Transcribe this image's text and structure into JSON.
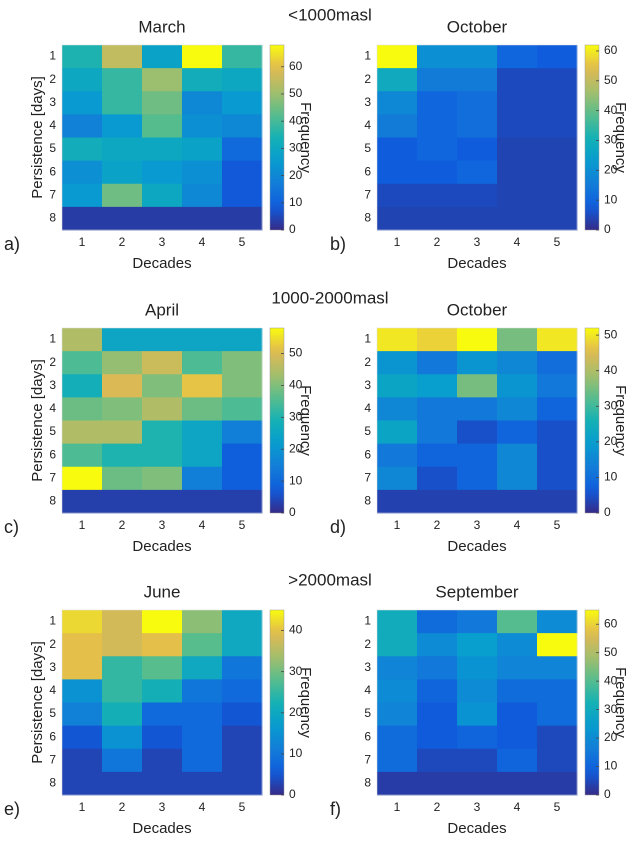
{
  "chart_data": [
    {
      "type": "heatmap",
      "title": "March",
      "annotation": "<1000masl",
      "panel_label": "a)",
      "xlabel": "Decades",
      "ylabel": "Persistence [days]",
      "colorbar_label": "Frequency",
      "x": [
        1,
        2,
        3,
        4,
        5
      ],
      "y": [
        1,
        2,
        3,
        4,
        5,
        6,
        7,
        8
      ],
      "values": [
        [
          35,
          55,
          28,
          68,
          38
        ],
        [
          30,
          38,
          50,
          32,
          30
        ],
        [
          25,
          38,
          45,
          20,
          25
        ],
        [
          18,
          25,
          42,
          22,
          20
        ],
        [
          32,
          30,
          30,
          28,
          12
        ],
        [
          22,
          28,
          25,
          22,
          8
        ],
        [
          25,
          45,
          30,
          20,
          8
        ],
        [
          3,
          3,
          3,
          3,
          3
        ]
      ],
      "clim": [
        0,
        68
      ],
      "cticks": [
        0,
        10,
        20,
        30,
        40,
        50,
        60
      ]
    },
    {
      "type": "heatmap",
      "title": "October",
      "panel_label": "b)",
      "xlabel": "Decades",
      "colorbar_label": "Frequency",
      "x": [
        1,
        2,
        3,
        4,
        5
      ],
      "y": [
        1,
        2,
        3,
        4,
        5,
        6,
        7,
        8
      ],
      "values": [
        [
          62,
          20,
          20,
          10,
          8
        ],
        [
          28,
          15,
          15,
          5,
          5
        ],
        [
          18,
          10,
          12,
          5,
          5
        ],
        [
          15,
          10,
          12,
          5,
          5
        ],
        [
          8,
          10,
          8,
          4,
          4
        ],
        [
          8,
          8,
          10,
          4,
          4
        ],
        [
          5,
          5,
          5,
          4,
          4
        ],
        [
          4,
          4,
          4,
          4,
          4
        ]
      ],
      "clim": [
        0,
        62
      ],
      "cticks": [
        0,
        10,
        20,
        30,
        40,
        50,
        60
      ]
    },
    {
      "type": "heatmap",
      "title": "April",
      "annotation": "1000-2000masl",
      "panel_label": "c)",
      "xlabel": "Decades",
      "ylabel": "Persistence [days]",
      "colorbar_label": "Frequency",
      "x": [
        1,
        2,
        3,
        4,
        5
      ],
      "y": [
        1,
        2,
        3,
        4,
        5,
        6,
        7,
        8
      ],
      "values": [
        [
          45,
          25,
          25,
          25,
          25
        ],
        [
          35,
          42,
          48,
          35,
          40
        ],
        [
          28,
          50,
          40,
          52,
          40
        ],
        [
          38,
          40,
          45,
          38,
          35
        ],
        [
          45,
          45,
          30,
          25,
          15
        ],
        [
          35,
          30,
          30,
          25,
          8
        ],
        [
          58,
          38,
          40,
          15,
          8
        ],
        [
          3,
          3,
          3,
          3,
          3
        ]
      ],
      "clim": [
        0,
        58
      ],
      "cticks": [
        0,
        10,
        20,
        30,
        40,
        50
      ]
    },
    {
      "type": "heatmap",
      "title": "October",
      "panel_label": "d)",
      "xlabel": "Decades",
      "colorbar_label": "Frequency",
      "x": [
        1,
        2,
        3,
        4,
        5
      ],
      "y": [
        1,
        2,
        3,
        4,
        5,
        6,
        7,
        8
      ],
      "values": [
        [
          50,
          48,
          52,
          35,
          50
        ],
        [
          18,
          12,
          18,
          15,
          10
        ],
        [
          22,
          20,
          35,
          18,
          12
        ],
        [
          15,
          12,
          12,
          15,
          8
        ],
        [
          22,
          12,
          5,
          8,
          5
        ],
        [
          12,
          8,
          8,
          15,
          5
        ],
        [
          15,
          5,
          8,
          15,
          5
        ],
        [
          3,
          3,
          3,
          3,
          3
        ]
      ],
      "clim": [
        0,
        52
      ],
      "cticks": [
        0,
        10,
        20,
        30,
        40,
        50
      ]
    },
    {
      "type": "heatmap",
      "title": "June",
      "annotation": ">2000masl",
      "panel_label": "e)",
      "xlabel": "Decades",
      "ylabel": "Persistence [days]",
      "colorbar_label": "Frequency",
      "x": [
        1,
        2,
        3,
        4,
        5
      ],
      "y": [
        1,
        2,
        3,
        4,
        5,
        6,
        7,
        8
      ],
      "values": [
        [
          42,
          38,
          45,
          32,
          20
        ],
        [
          40,
          38,
          40,
          28,
          20
        ],
        [
          40,
          25,
          28,
          20,
          10
        ],
        [
          15,
          25,
          22,
          10,
          8
        ],
        [
          12,
          22,
          8,
          8,
          5
        ],
        [
          5,
          15,
          5,
          8,
          3
        ],
        [
          3,
          10,
          3,
          8,
          3
        ],
        [
          3,
          3,
          3,
          3,
          3
        ]
      ],
      "clim": [
        0,
        45
      ],
      "cticks": [
        0,
        10,
        20,
        30,
        40
      ]
    },
    {
      "type": "heatmap",
      "title": "September",
      "panel_label": "f)",
      "xlabel": "Decades",
      "colorbar_label": "Frequency",
      "x": [
        1,
        2,
        3,
        4,
        5
      ],
      "y": [
        1,
        2,
        3,
        4,
        5,
        6,
        7,
        8
      ],
      "values": [
        [
          30,
          12,
          15,
          40,
          20
        ],
        [
          30,
          20,
          25,
          20,
          65
        ],
        [
          18,
          15,
          22,
          18,
          18
        ],
        [
          20,
          10,
          20,
          12,
          12
        ],
        [
          18,
          8,
          22,
          8,
          12
        ],
        [
          12,
          8,
          10,
          8,
          5
        ],
        [
          12,
          5,
          5,
          10,
          5
        ],
        [
          3,
          3,
          3,
          3,
          3
        ]
      ],
      "clim": [
        0,
        65
      ],
      "cticks": [
        0,
        10,
        20,
        30,
        40,
        50,
        60
      ]
    }
  ]
}
